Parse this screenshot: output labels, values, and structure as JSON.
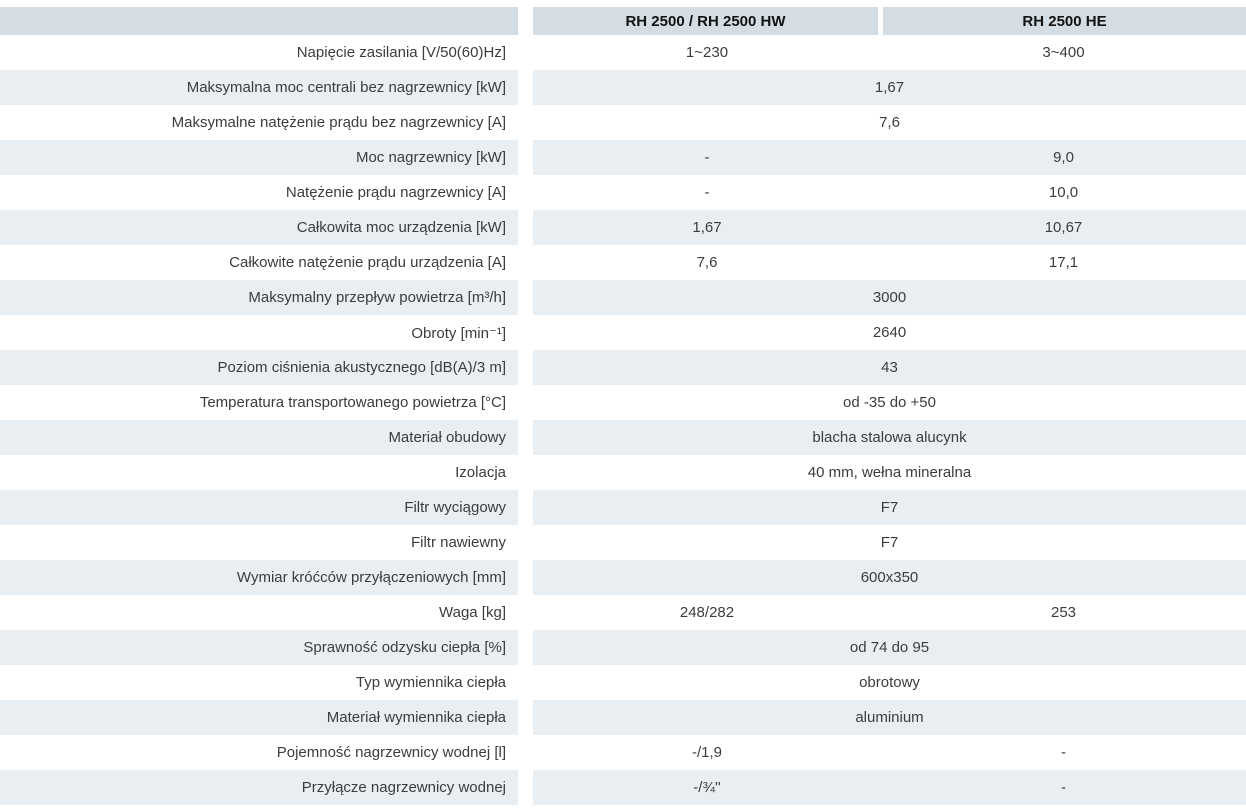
{
  "colors": {
    "header_bg": "#d3dde3",
    "row_shade_bg": "#e9eef2",
    "label_text": "#3c3c3c",
    "header_text": "#121212"
  },
  "table": {
    "columns": [
      "RH 2500 / RH 2500 HW",
      "RH 2500 HE"
    ],
    "rows": [
      {
        "label": "Napięcie zasilania [V/50(60)Hz]",
        "merged": false,
        "values": [
          "1~230",
          "3~400"
        ]
      },
      {
        "label": "Maksymalna moc centrali bez nagrzewnicy [kW]",
        "merged": true,
        "values": [
          "1,67"
        ]
      },
      {
        "label": "Maksymalne natężenie prądu bez nagrzewnicy [A]",
        "merged": true,
        "values": [
          "7,6"
        ]
      },
      {
        "label": "Moc nagrzewnicy [kW]",
        "merged": false,
        "values": [
          "-",
          "9,0"
        ]
      },
      {
        "label": "Natężenie prądu nagrzewnicy [A]",
        "merged": false,
        "values": [
          "-",
          "10,0"
        ]
      },
      {
        "label": "Całkowita moc urządzenia [kW]",
        "merged": false,
        "values": [
          "1,67",
          "10,67"
        ]
      },
      {
        "label": "Całkowite natężenie prądu urządzenia [A]",
        "merged": false,
        "values": [
          "7,6",
          "17,1"
        ]
      },
      {
        "label": "Maksymalny przepływ powietrza [m³/h]",
        "merged": true,
        "values": [
          "3000"
        ]
      },
      {
        "label": "Obroty [min⁻¹]",
        "merged": true,
        "values": [
          "2640"
        ]
      },
      {
        "label": "Poziom ciśnienia akustycznego [dB(A)/3 m]",
        "merged": true,
        "values": [
          "43"
        ]
      },
      {
        "label": "Temperatura transportowanego powietrza [°C]",
        "merged": true,
        "values": [
          "od -35 do +50"
        ]
      },
      {
        "label": "Materiał obudowy",
        "merged": true,
        "values": [
          "blacha stalowa alucynk"
        ]
      },
      {
        "label": "Izolacja",
        "merged": true,
        "values": [
          "40 mm, wełna mineralna"
        ]
      },
      {
        "label": "Filtr wyciągowy",
        "merged": true,
        "values": [
          "F7"
        ]
      },
      {
        "label": "Filtr nawiewny",
        "merged": true,
        "values": [
          "F7"
        ]
      },
      {
        "label": "Wymiar króćców przyłączeniowych [mm]",
        "merged": true,
        "values": [
          "600x350"
        ]
      },
      {
        "label": "Waga [kg]",
        "merged": false,
        "values": [
          "248/282",
          "253"
        ]
      },
      {
        "label": "Sprawność odzysku ciepła [%]",
        "merged": true,
        "values": [
          "od 74 do 95"
        ]
      },
      {
        "label": "Typ wymiennika ciepła",
        "merged": true,
        "values": [
          "obrotowy"
        ]
      },
      {
        "label": "Materiał wymiennika ciepła",
        "merged": true,
        "values": [
          "aluminium"
        ]
      },
      {
        "label": "Pojemność nagrzewnicy wodnej [l]",
        "merged": false,
        "values": [
          "-/1,9",
          "-"
        ]
      },
      {
        "label": "Przyłącze nagrzewnicy wodnej",
        "merged": false,
        "values": [
          "-/¾''",
          "-"
        ]
      }
    ]
  }
}
